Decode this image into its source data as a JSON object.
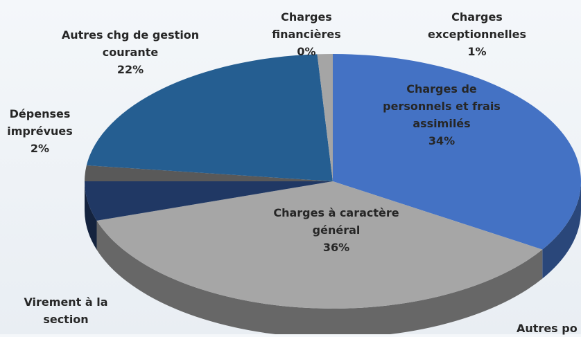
{
  "chart_data": {
    "type": "pie3d",
    "categories": [
      "Charges de personnels et frais assimilés",
      "Autres po",
      "Charges à caractère général",
      "Virement à la section",
      "Dépenses imprévues",
      "Autres chg de gestion courante",
      "Charges financières",
      "Charges exceptionnelles"
    ],
    "values": [
      34,
      0,
      36,
      5,
      2,
      22,
      0,
      1
    ],
    "value_labels": [
      "34%",
      null,
      "36%",
      null,
      "2%",
      "22%",
      "0%",
      "1%"
    ],
    "colors": [
      "#4472c4",
      "#8faadc",
      "#a6a6a6",
      "#203864",
      "#595959",
      "#255e91",
      "#ffffff",
      "#a5a5a5"
    ]
  }
}
